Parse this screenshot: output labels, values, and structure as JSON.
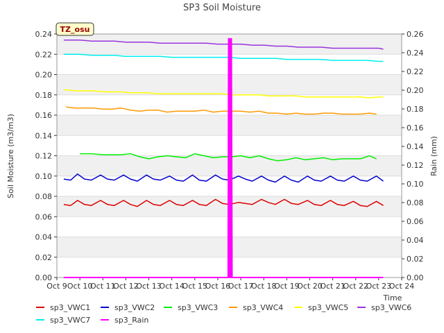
{
  "chart_data": {
    "type": "line",
    "title": "SP3 Soil Moisture",
    "xlabel": "Time",
    "ylabel": "Soil Moisture (m3/m3)",
    "y2label": "Rain (mm)",
    "badge": "TZ_osu",
    "xlim": [
      9,
      24
    ],
    "ylim": [
      0,
      0.24
    ],
    "y2lim": [
      0,
      0.26
    ],
    "x_ticks": [
      9,
      10,
      11,
      12,
      13,
      14,
      15,
      16,
      17,
      18,
      19,
      20,
      21,
      22,
      23,
      24
    ],
    "x_tick_labels": [
      "Oct 9",
      "Oct 10",
      "Oct 11",
      "Oct 12",
      "Oct 13",
      "Oct 14",
      "Oct 15",
      "Oct 16",
      "Oct 17",
      "Oct 18",
      "Oct 19",
      "Oct 20",
      "Oct 21",
      "Oct 22",
      "Oct 23",
      "Oct 24"
    ],
    "y_ticks": [
      0.0,
      0.02,
      0.04,
      0.06,
      0.08,
      0.1,
      0.12,
      0.14,
      0.16,
      0.18,
      0.2,
      0.22,
      0.24
    ],
    "y_tick_labels": [
      "0.00",
      "0.02",
      "0.04",
      "0.06",
      "0.08",
      "0.10",
      "0.12",
      "0.14",
      "0.16",
      "0.18",
      "0.20",
      "0.22",
      "0.24"
    ],
    "y2_ticks": [
      0.0,
      0.02,
      0.04,
      0.06,
      0.08,
      0.1,
      0.12,
      0.14,
      0.16,
      0.18,
      0.2,
      0.22,
      0.24,
      0.26
    ],
    "y2_tick_labels": [
      "0.00",
      "0.02",
      "0.04",
      "0.06",
      "0.08",
      "0.10",
      "0.12",
      "0.14",
      "0.16",
      "0.18",
      "0.20",
      "0.22",
      "0.24",
      "0.26"
    ],
    "grid": true,
    "legend": "bottom",
    "series": [
      {
        "name": "sp3_VWC1",
        "color": "#dd0000",
        "axis": "left",
        "x": [
          9.3,
          9.6,
          9.9,
          10.2,
          10.5,
          10.9,
          11.2,
          11.5,
          11.9,
          12.2,
          12.5,
          12.9,
          13.2,
          13.5,
          13.9,
          14.2,
          14.5,
          14.9,
          15.2,
          15.5,
          15.9,
          16.2,
          16.5,
          16.9,
          17.2,
          17.5,
          17.9,
          18.2,
          18.5,
          18.9,
          19.2,
          19.5,
          19.9,
          20.2,
          20.5,
          20.9,
          21.2,
          21.5,
          21.9,
          22.2,
          22.5,
          22.9,
          23.2
        ],
        "y": [
          0.072,
          0.071,
          0.076,
          0.072,
          0.071,
          0.076,
          0.072,
          0.071,
          0.076,
          0.072,
          0.07,
          0.076,
          0.072,
          0.071,
          0.076,
          0.072,
          0.071,
          0.076,
          0.072,
          0.071,
          0.077,
          0.073,
          0.072,
          0.074,
          0.073,
          0.072,
          0.077,
          0.074,
          0.072,
          0.077,
          0.073,
          0.072,
          0.076,
          0.072,
          0.071,
          0.076,
          0.072,
          0.071,
          0.075,
          0.071,
          0.07,
          0.075,
          0.071
        ]
      },
      {
        "name": "sp3_VWC2",
        "color": "#0000cc",
        "axis": "left",
        "x": [
          9.3,
          9.6,
          9.9,
          10.2,
          10.5,
          10.9,
          11.2,
          11.5,
          11.9,
          12.2,
          12.5,
          12.9,
          13.2,
          13.5,
          13.9,
          14.2,
          14.5,
          14.9,
          15.2,
          15.5,
          15.9,
          16.2,
          16.5,
          16.9,
          17.2,
          17.5,
          17.9,
          18.2,
          18.5,
          18.9,
          19.2,
          19.5,
          19.9,
          20.2,
          20.5,
          20.9,
          21.2,
          21.5,
          21.9,
          22.2,
          22.5,
          22.9,
          23.2
        ],
        "y": [
          0.097,
          0.096,
          0.102,
          0.097,
          0.096,
          0.101,
          0.097,
          0.096,
          0.101,
          0.097,
          0.095,
          0.101,
          0.097,
          0.096,
          0.1,
          0.096,
          0.095,
          0.101,
          0.096,
          0.095,
          0.101,
          0.097,
          0.096,
          0.1,
          0.097,
          0.095,
          0.1,
          0.096,
          0.094,
          0.1,
          0.096,
          0.094,
          0.1,
          0.096,
          0.095,
          0.1,
          0.096,
          0.095,
          0.1,
          0.096,
          0.095,
          0.1,
          0.095
        ]
      },
      {
        "name": "sp3_VWC3",
        "color": "#00ee00",
        "axis": "left",
        "x": [
          10.0,
          10.5,
          11.0,
          11.4,
          11.8,
          12.2,
          12.6,
          13.0,
          13.4,
          13.8,
          14.2,
          14.6,
          15.0,
          15.4,
          15.8,
          16.2,
          16.6,
          17.0,
          17.4,
          17.8,
          18.2,
          18.6,
          19.0,
          19.4,
          19.8,
          20.2,
          20.6,
          21.0,
          21.4,
          21.8,
          22.2,
          22.6,
          22.9
        ],
        "y": [
          0.122,
          0.122,
          0.121,
          0.121,
          0.121,
          0.122,
          0.119,
          0.117,
          0.119,
          0.12,
          0.119,
          0.118,
          0.122,
          0.12,
          0.118,
          0.119,
          0.119,
          0.12,
          0.118,
          0.12,
          0.117,
          0.115,
          0.116,
          0.118,
          0.116,
          0.117,
          0.118,
          0.116,
          0.117,
          0.117,
          0.117,
          0.12,
          0.117
        ]
      },
      {
        "name": "sp3_VWC4",
        "color": "#ff9900",
        "axis": "left",
        "x": [
          9.4,
          9.8,
          10.2,
          10.6,
          11.0,
          11.4,
          11.8,
          12.2,
          12.6,
          13.0,
          13.4,
          13.8,
          14.2,
          14.6,
          15.0,
          15.4,
          15.8,
          16.2,
          16.6,
          17.0,
          17.4,
          17.8,
          18.2,
          18.6,
          19.0,
          19.4,
          19.8,
          20.2,
          20.6,
          21.0,
          21.4,
          21.8,
          22.2,
          22.6,
          22.9
        ],
        "y": [
          0.168,
          0.167,
          0.167,
          0.167,
          0.166,
          0.166,
          0.167,
          0.165,
          0.164,
          0.165,
          0.165,
          0.163,
          0.164,
          0.164,
          0.164,
          0.165,
          0.163,
          0.164,
          0.164,
          0.164,
          0.163,
          0.164,
          0.162,
          0.162,
          0.161,
          0.162,
          0.161,
          0.161,
          0.162,
          0.162,
          0.161,
          0.161,
          0.161,
          0.162,
          0.161
        ]
      },
      {
        "name": "sp3_VWC5",
        "color": "#ffff00",
        "axis": "left",
        "x": [
          9.3,
          9.8,
          10.2,
          10.6,
          11.0,
          11.4,
          11.8,
          12.2,
          12.6,
          13.0,
          13.4,
          13.8,
          14.2,
          14.6,
          15.0,
          15.4,
          15.8,
          16.2,
          16.6,
          17.0,
          17.4,
          17.8,
          18.2,
          18.6,
          19.0,
          19.4,
          19.8,
          20.2,
          20.6,
          21.0,
          21.4,
          21.8,
          22.2,
          22.6,
          23.0,
          23.2
        ],
        "y": [
          0.185,
          0.184,
          0.184,
          0.184,
          0.183,
          0.183,
          0.183,
          0.182,
          0.182,
          0.182,
          0.181,
          0.181,
          0.181,
          0.181,
          0.181,
          0.181,
          0.181,
          0.181,
          0.18,
          0.18,
          0.18,
          0.18,
          0.179,
          0.179,
          0.179,
          0.179,
          0.178,
          0.178,
          0.178,
          0.178,
          0.178,
          0.178,
          0.178,
          0.177,
          0.178,
          0.178
        ]
      },
      {
        "name": "sp3_VWC6",
        "color": "#9933dd",
        "axis": "left",
        "x": [
          9.3,
          10.0,
          10.5,
          11.0,
          11.5,
          12.0,
          12.5,
          13.0,
          13.5,
          14.0,
          14.5,
          15.0,
          15.5,
          16.0,
          16.5,
          17.0,
          17.5,
          18.0,
          18.5,
          19.0,
          19.5,
          20.0,
          20.5,
          21.0,
          21.5,
          22.0,
          22.5,
          23.0,
          23.2
        ],
        "y": [
          0.234,
          0.234,
          0.233,
          0.233,
          0.233,
          0.232,
          0.232,
          0.232,
          0.231,
          0.231,
          0.231,
          0.231,
          0.231,
          0.23,
          0.23,
          0.23,
          0.229,
          0.229,
          0.228,
          0.228,
          0.227,
          0.227,
          0.227,
          0.226,
          0.226,
          0.226,
          0.226,
          0.226,
          0.225
        ]
      },
      {
        "name": "sp3_VWC7",
        "color": "#00eeee",
        "axis": "left",
        "x": [
          9.3,
          10.0,
          10.5,
          11.0,
          11.5,
          12.0,
          12.5,
          13.0,
          13.5,
          14.0,
          14.5,
          15.0,
          15.5,
          16.0,
          16.5,
          17.0,
          17.5,
          18.0,
          18.5,
          19.0,
          19.5,
          20.0,
          20.5,
          21.0,
          21.5,
          22.0,
          22.5,
          23.0,
          23.2
        ],
        "y": [
          0.22,
          0.22,
          0.219,
          0.219,
          0.219,
          0.218,
          0.218,
          0.218,
          0.218,
          0.217,
          0.217,
          0.217,
          0.217,
          0.217,
          0.217,
          0.216,
          0.216,
          0.216,
          0.216,
          0.215,
          0.215,
          0.215,
          0.215,
          0.214,
          0.214,
          0.214,
          0.214,
          0.213,
          0.213
        ]
      },
      {
        "name": "sp3_Rain",
        "color": "#ff00ff",
        "axis": "right",
        "x": [
          9.3,
          16.45,
          16.47,
          16.5,
          16.53,
          16.56,
          16.59,
          16.62,
          23.2
        ],
        "y": [
          0.0,
          0.0,
          0.255,
          0.0,
          0.255,
          0.0,
          0.255,
          0.0,
          0.0
        ]
      }
    ]
  }
}
